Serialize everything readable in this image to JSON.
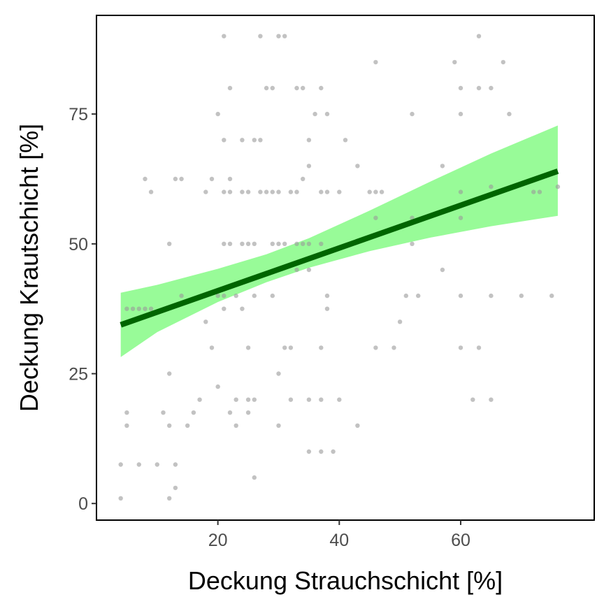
{
  "chart_data": {
    "type": "scatter",
    "title": "",
    "xlabel": "Deckung Strauchschicht [%]",
    "ylabel": "Deckung Krautschicht [%]",
    "xlim": [
      0,
      82
    ],
    "ylim": [
      -3.2,
      94
    ],
    "x_ticks": [
      20,
      40,
      60
    ],
    "y_ticks": [
      0,
      25,
      50,
      75
    ],
    "grid": false,
    "colors": {
      "points": "#9a9a9a",
      "fit_line": "#006400",
      "ribbon": "#98fb98",
      "panel_border": "#000000",
      "tick_label": "#4d4d4d"
    },
    "points": [
      [
        4,
        1
      ],
      [
        4,
        7.5
      ],
      [
        5,
        15
      ],
      [
        5,
        17.5
      ],
      [
        5,
        37.5
      ],
      [
        6,
        37.5
      ],
      [
        7,
        37.5
      ],
      [
        7,
        7.5
      ],
      [
        8,
        37.5
      ],
      [
        8,
        62.5
      ],
      [
        9,
        37.5
      ],
      [
        9,
        60
      ],
      [
        10,
        7.5
      ],
      [
        11,
        17.5
      ],
      [
        12,
        50
      ],
      [
        12,
        25
      ],
      [
        12,
        15
      ],
      [
        12,
        1
      ],
      [
        13,
        62.5
      ],
      [
        13,
        7.5
      ],
      [
        13,
        3
      ],
      [
        14,
        62.5
      ],
      [
        14,
        40
      ],
      [
        15,
        15
      ],
      [
        16,
        17.5
      ],
      [
        17,
        20
      ],
      [
        18,
        60
      ],
      [
        18,
        35
      ],
      [
        19,
        62.5
      ],
      [
        19,
        30
      ],
      [
        20,
        75
      ],
      [
        20,
        40
      ],
      [
        20,
        22.5
      ],
      [
        21,
        90
      ],
      [
        21,
        70
      ],
      [
        21,
        60
      ],
      [
        21,
        50
      ],
      [
        21,
        40
      ],
      [
        21,
        37.5
      ],
      [
        22,
        80
      ],
      [
        22,
        62.5
      ],
      [
        22,
        60
      ],
      [
        22,
        50
      ],
      [
        22,
        17.5
      ],
      [
        23,
        40
      ],
      [
        23,
        20
      ],
      [
        23,
        15
      ],
      [
        24,
        70
      ],
      [
        24,
        60
      ],
      [
        24,
        50
      ],
      [
        24,
        37.5
      ],
      [
        25,
        60
      ],
      [
        25,
        50
      ],
      [
        25,
        30
      ],
      [
        25,
        20
      ],
      [
        25,
        17.5
      ],
      [
        26,
        70
      ],
      [
        26,
        50
      ],
      [
        26,
        40
      ],
      [
        26,
        20
      ],
      [
        26,
        5
      ],
      [
        27,
        90
      ],
      [
        27,
        70
      ],
      [
        27,
        60
      ],
      [
        28,
        80
      ],
      [
        28,
        60
      ],
      [
        29,
        80
      ],
      [
        29,
        60
      ],
      [
        29,
        50
      ],
      [
        29,
        40
      ],
      [
        30,
        90
      ],
      [
        30,
        60
      ],
      [
        30,
        50
      ],
      [
        30,
        25
      ],
      [
        30,
        15
      ],
      [
        31,
        90
      ],
      [
        31,
        30
      ],
      [
        31,
        50
      ],
      [
        32,
        60
      ],
      [
        32,
        30
      ],
      [
        32,
        20
      ],
      [
        33,
        80
      ],
      [
        33,
        60
      ],
      [
        33,
        50
      ],
      [
        33,
        45
      ],
      [
        34,
        80
      ],
      [
        34,
        62.5
      ],
      [
        34,
        50
      ],
      [
        35,
        70
      ],
      [
        35,
        65
      ],
      [
        35,
        50
      ],
      [
        35,
        45
      ],
      [
        35,
        20
      ],
      [
        35,
        10
      ],
      [
        36,
        75
      ],
      [
        37,
        80
      ],
      [
        37,
        60
      ],
      [
        37,
        50
      ],
      [
        37,
        30
      ],
      [
        37,
        20
      ],
      [
        37,
        10
      ],
      [
        38,
        75
      ],
      [
        38,
        60
      ],
      [
        38,
        40
      ],
      [
        38,
        37.5
      ],
      [
        39,
        10
      ],
      [
        40,
        60
      ],
      [
        40,
        20
      ],
      [
        41,
        70
      ],
      [
        43,
        65
      ],
      [
        43,
        15
      ],
      [
        45,
        60
      ],
      [
        46,
        85
      ],
      [
        46,
        60
      ],
      [
        46,
        55
      ],
      [
        46,
        30
      ],
      [
        47,
        60
      ],
      [
        49,
        30
      ],
      [
        50,
        35
      ],
      [
        51,
        40
      ],
      [
        52,
        75
      ],
      [
        52,
        55
      ],
      [
        52,
        50
      ],
      [
        53,
        40
      ],
      [
        57,
        65
      ],
      [
        57,
        45
      ],
      [
        59,
        85
      ],
      [
        60,
        80
      ],
      [
        60,
        75
      ],
      [
        60,
        60
      ],
      [
        60,
        55
      ],
      [
        60,
        40
      ],
      [
        60,
        30
      ],
      [
        62,
        20
      ],
      [
        63,
        90
      ],
      [
        63,
        80
      ],
      [
        63,
        30
      ],
      [
        65,
        80
      ],
      [
        65,
        61
      ],
      [
        65,
        40
      ],
      [
        65,
        20
      ],
      [
        67,
        85
      ],
      [
        68,
        75
      ],
      [
        70,
        40
      ],
      [
        72,
        60
      ],
      [
        73,
        60
      ],
      [
        75,
        40
      ],
      [
        76,
        61
      ]
    ],
    "fit_line": {
      "x": [
        4,
        76
      ],
      "y": [
        34.4,
        64.0
      ]
    },
    "confidence_band": {
      "x": [
        4,
        10,
        20,
        28,
        35,
        45,
        55,
        65,
        76
      ],
      "lower": [
        28.2,
        33.0,
        38.8,
        42.6,
        45.4,
        48.6,
        51.2,
        53.4,
        55.4
      ],
      "upper": [
        40.6,
        42.1,
        45.2,
        48.0,
        51.1,
        56.4,
        62.0,
        67.4,
        72.8
      ]
    }
  }
}
